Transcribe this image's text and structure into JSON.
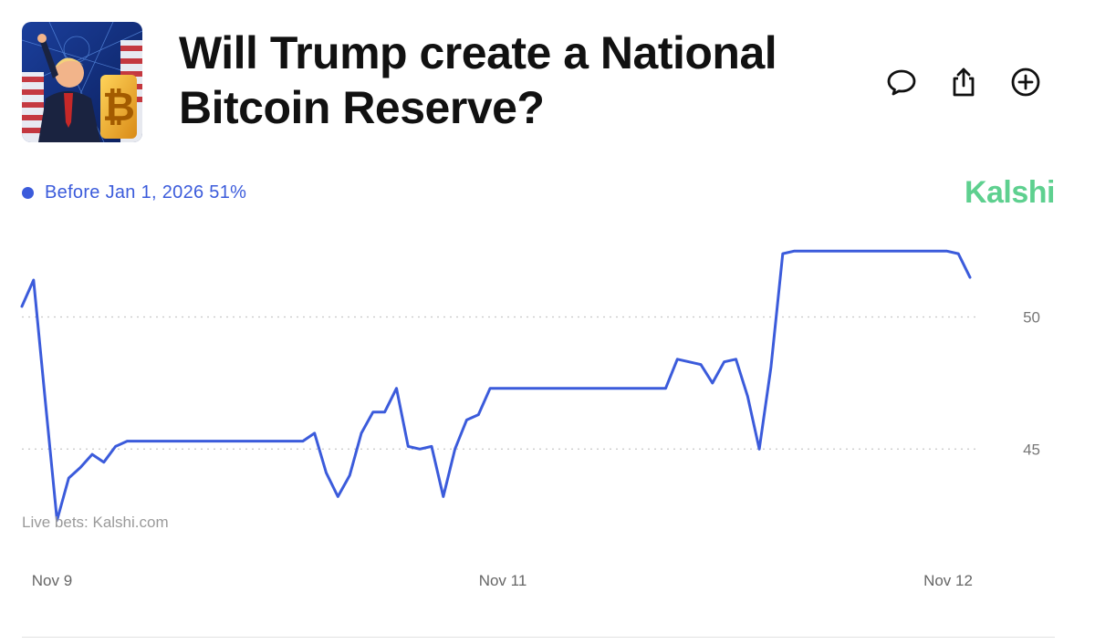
{
  "header": {
    "title": "Will Trump create a National Bitcoin Reserve?",
    "actions": [
      {
        "name": "comment",
        "icon": "comment-icon"
      },
      {
        "name": "share",
        "icon": "share-icon"
      },
      {
        "name": "add",
        "icon": "plus-circle-icon"
      }
    ]
  },
  "legend": {
    "label": "Before Jan 1, 2026 51%",
    "color": "#3b5bdb"
  },
  "brand": {
    "name": "Kalshi",
    "color": "#5ed08f"
  },
  "watermark": "Live bets: Kalshi.com",
  "chart_data": {
    "type": "line",
    "xlabel": "",
    "ylabel": "",
    "x_ticks": [
      "Nov 9",
      "Nov 11",
      "Nov 12"
    ],
    "y_ticks": [
      45,
      50
    ],
    "ylim": [
      41.9,
      53.3
    ],
    "grid": true,
    "legend_position": "top-left",
    "series": [
      {
        "name": "Before Jan 1, 2026",
        "color": "#3b5bdb",
        "values": [
          50.4,
          51.4,
          46.8,
          42.3,
          43.9,
          44.3,
          44.8,
          44.5,
          45.1,
          45.3,
          45.3,
          45.3,
          45.3,
          45.3,
          45.3,
          45.3,
          45.3,
          45.3,
          45.3,
          45.3,
          45.3,
          45.3,
          45.3,
          45.3,
          45.3,
          45.6,
          44.1,
          43.2,
          44.0,
          45.6,
          46.4,
          46.4,
          47.3,
          45.1,
          45.0,
          45.1,
          43.2,
          45.0,
          46.1,
          46.3,
          47.3,
          47.3,
          47.3,
          47.3,
          47.3,
          47.3,
          47.3,
          47.3,
          47.3,
          47.3,
          47.3,
          47.3,
          47.3,
          47.3,
          47.3,
          47.3,
          48.4,
          48.3,
          48.2,
          47.5,
          48.3,
          48.4,
          47.0,
          45.0,
          48.1,
          52.4,
          52.5,
          52.5,
          52.5,
          52.5,
          52.5,
          52.5,
          52.5,
          52.5,
          52.5,
          52.5,
          52.5,
          52.5,
          52.5,
          52.5,
          52.4,
          51.5
        ]
      }
    ]
  }
}
